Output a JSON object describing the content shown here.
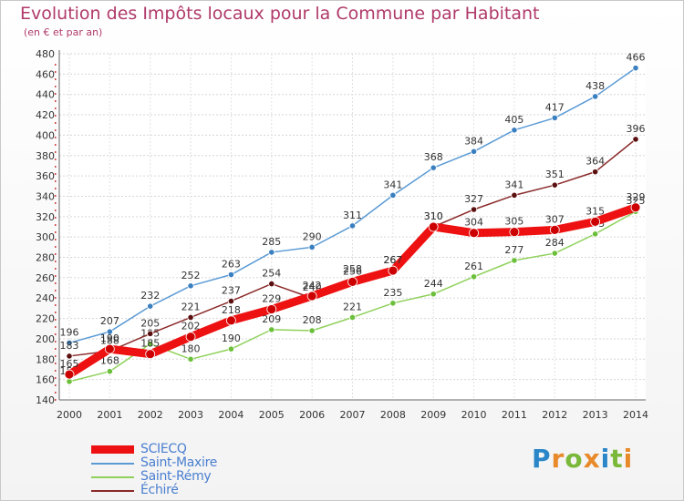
{
  "title": "Evolution des Impôts locaux pour la Commune par Habitant",
  "subtitle": "(en € et par an)",
  "logo": {
    "letters": [
      "P",
      "r",
      "o",
      "x",
      "i",
      "t",
      "i"
    ],
    "colors": [
      "#2a86c8",
      "#e8892a",
      "#7ab83a",
      "#e8892a",
      "#2a86c8",
      "#7ab83a",
      "#e8892a"
    ]
  },
  "chart_data": {
    "type": "line",
    "x": [
      "2000",
      "2001",
      "2002",
      "2003",
      "2004",
      "2005",
      "2006",
      "2007",
      "2008",
      "2009",
      "2010",
      "2011",
      "2012",
      "2013",
      "2014"
    ],
    "ylim": [
      140,
      480
    ],
    "yticks": [
      140,
      160,
      180,
      200,
      220,
      240,
      260,
      280,
      300,
      320,
      340,
      360,
      380,
      400,
      420,
      440,
      460,
      480
    ],
    "grid": true,
    "legend_position": "bottom-left",
    "series": [
      {
        "name": "Saint-Maxire",
        "color": "#5b9bd5",
        "point_color": "#3a7fc0",
        "values": [
          196,
          207,
          232,
          252,
          263,
          285,
          290,
          311,
          341,
          368,
          384,
          405,
          417,
          438,
          466
        ],
        "labels": [
          "196",
          "207",
          "232",
          "252",
          "263",
          "285",
          "290",
          "311",
          "341",
          "368",
          "384",
          "405",
          "417",
          "438",
          "466"
        ]
      },
      {
        "name": "Saint-Rémy",
        "color": "#8fd15a",
        "point_color": "#6bbf3a",
        "values": [
          158,
          168,
          195,
          180,
          190,
          209,
          208,
          221,
          235,
          244,
          261,
          277,
          284,
          303,
          325
        ],
        "labels": [
          "158",
          "168",
          "195",
          "180",
          "190",
          "209",
          "208",
          "221",
          "235",
          "244",
          "261",
          "277",
          "284",
          "303",
          "325"
        ]
      },
      {
        "name": "Échiré",
        "color": "#8b2a2a",
        "point_color": "#5a1010",
        "values": [
          183,
          188,
          205,
          221,
          237,
          254,
          240,
          258,
          267,
          310,
          327,
          341,
          351,
          364,
          396
        ],
        "labels": [
          "183",
          "188",
          "205",
          "221",
          "237",
          "254",
          "240",
          "258",
          "267",
          "310",
          "327",
          "341",
          "351",
          "364",
          "396"
        ]
      },
      {
        "name": "SCIECQ",
        "color": "#ee1111",
        "point_color": "#ee1111",
        "values": [
          165,
          190,
          185,
          202,
          218,
          229,
          242,
          256,
          267,
          310,
          304,
          305,
          307,
          315,
          329
        ],
        "labels": [
          "165",
          "190",
          "185",
          "202",
          "218",
          "229",
          "242",
          "256",
          "267",
          "310",
          "304",
          "305",
          "307",
          "315",
          "329"
        ]
      }
    ]
  }
}
